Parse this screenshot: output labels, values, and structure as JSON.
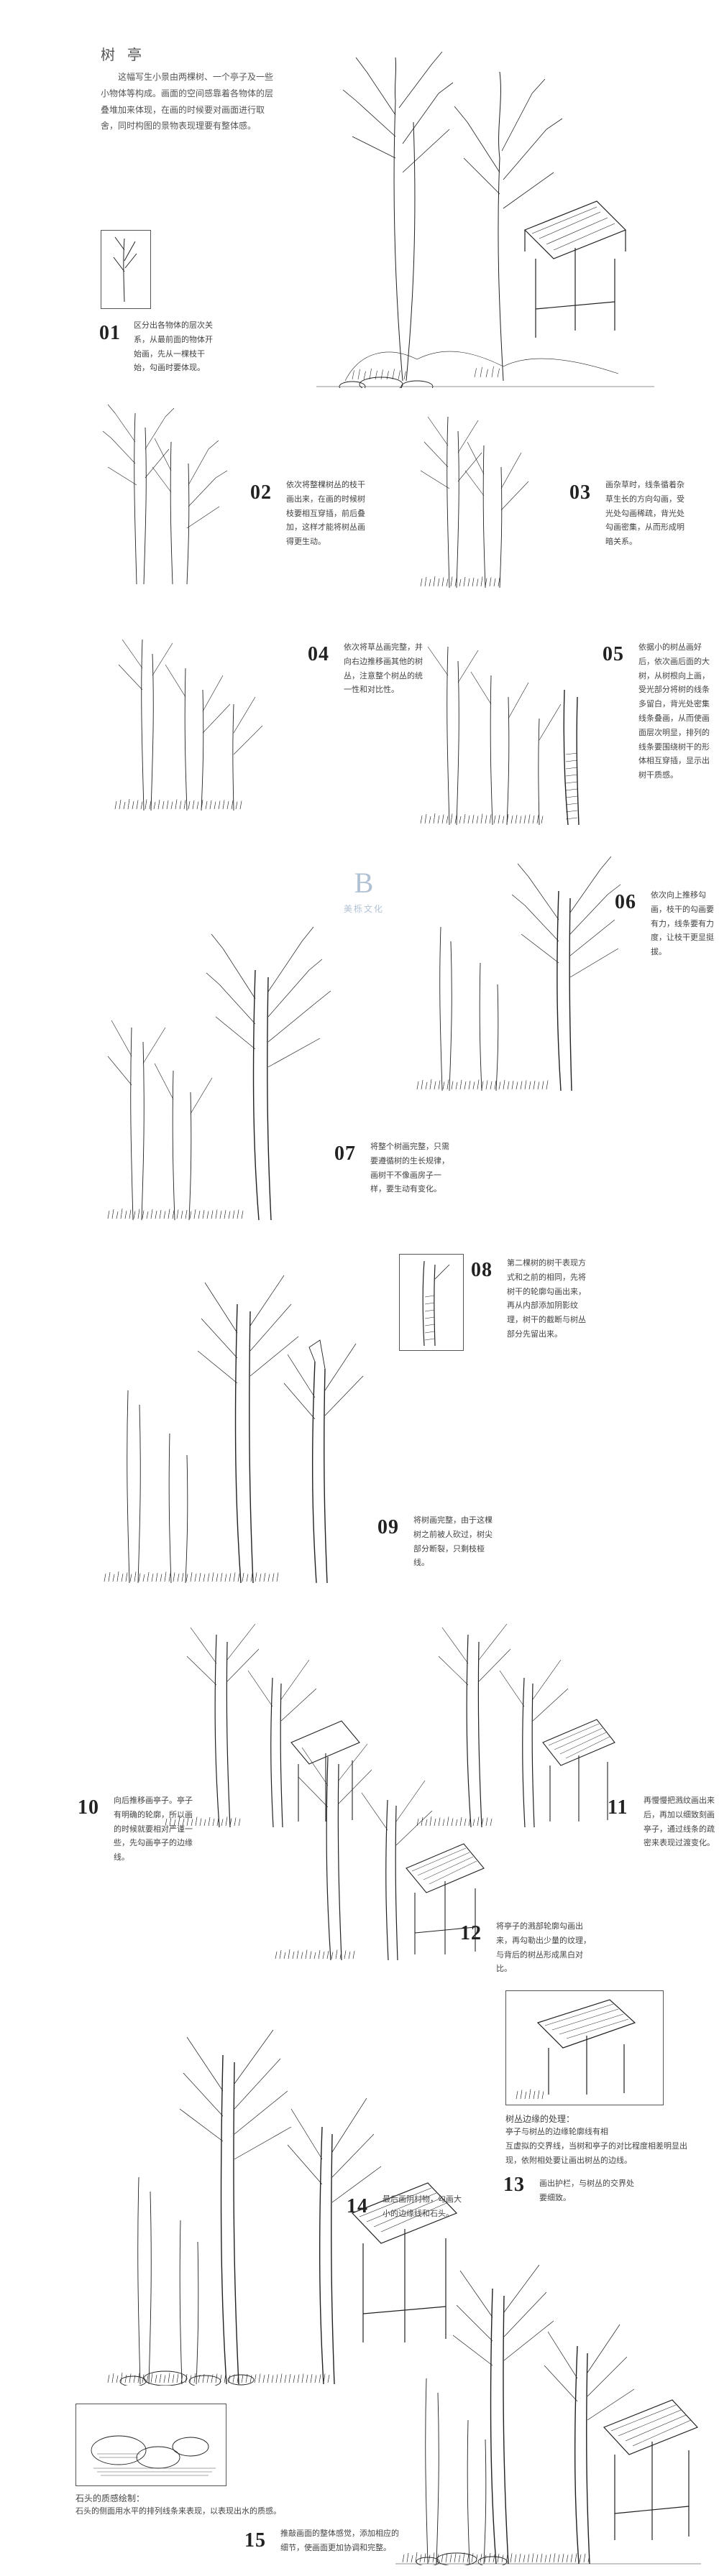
{
  "title": "树 亭",
  "intro": "这幅写生小景由两棵树、一个亭子及一些小物体等构成。画面的空间感靠着各物体的层叠堆加来体现，在画的时候要对画面进行取舍，同时构图的景物表现理要有整体感。",
  "steps": {
    "1": "区分出各物体的层次关系，从最前面的物体开始画，先从一棵枝干始，勾画时要体现。",
    "2": "依次将整棵树丛的枝干画出来，在画的时候树枝要相互穿插，前后叠加，这样才能将树丛画得更生动。",
    "3": "画杂草时，线条循着杂草生长的方向勾画，受光处勾画稀疏，背光处勾画密集，从而形成明暗关系。",
    "4": "依次将草丛画完整，并向右边推移画其他的树丛，注意整个树丛的统一性和对比性。",
    "5": "依据小的树丛画好后，依次画后面的大树，从树根向上画，受光部分将树的线条多留白，背光处密集线条叠画，从而使画面层次明显，排列的线条要围绕树干的形体相互穿插，显示出树干质感。",
    "6": "依次向上推移勾画，枝干的勾画要有力，线条要有力度，让枝干更显挺拔。",
    "7": "将整个树画完整，只需要遵循树的生长规律，画树干不像画房子一样，要生动有变化。",
    "8": "第二棵树的树干表现方式和之前的相同，先将树干的轮廓勾画出来，再从内部添加阴影纹理，树干的截断与树丛部分先留出来。",
    "9": "将树画完整，由于这棵树之前被人砍过，树尖部分断裂，只剩枝桠线。",
    "10": "向后推移画亭子。亭子有明确的轮廓，所以画的时候就要相对严谨一些，先勾画亭子的边缘线。",
    "11": "再慢慢把溅纹画出来后，再加以细致刻画亭子，通过线条的疏密来表现过渡变化。",
    "12": "将亭子的溅部轮廓勾画出来，再勾勒出少量的纹理，与背后的树丛形成黑白对比。",
    "13": "画出护栏，与树丛的交界处要细致。",
    "14": "最后画阴村物，勾画大小的边缘线和石头。",
    "15": "推敲画面的整体感觉，添加相应的细节，使画面更加协调和完整。"
  },
  "notes": {
    "bush_title": "树丛边缘的处理：",
    "bush_body": "亭子与树丛的边缘轮廓线有相<br>互虚拟的交界线，当树和亭子的对比程度相差明显出现，依附相处要让画出树丛的边线。",
    "rock_title": "石头的质感绘制：",
    "rock_body": "石头的侧面用水平的排列线条来表现，以表现出水的质感。"
  },
  "watermark": {
    "glyph": "B",
    "text": "美栎文化"
  },
  "colors": {
    "bg": "#ffffff",
    "text": "#444444",
    "num": "#222222",
    "wm": "#8fa8c2"
  }
}
